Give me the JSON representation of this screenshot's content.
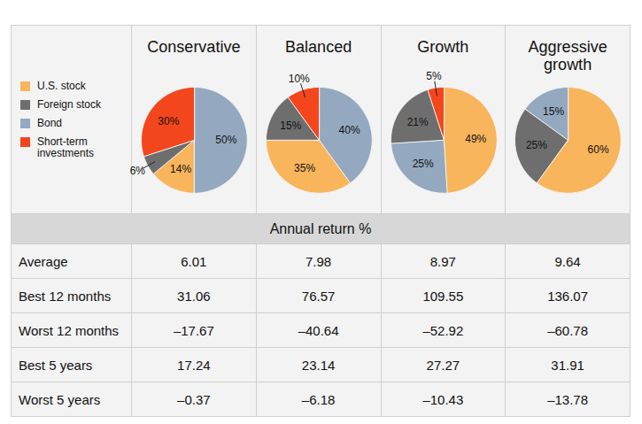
{
  "legend_entries": [
    {
      "name": "U.S. stock",
      "color": "#f8b55c"
    },
    {
      "name": "Foreign stock",
      "color": "#6e6e6e"
    },
    {
      "name": "Bond",
      "color": "#94a9bf"
    },
    {
      "name": "Short-term investments",
      "color": "#f4461c"
    }
  ],
  "chart_data": [
    {
      "type": "pie",
      "title": "Conservative",
      "categories": [
        "Bond",
        "U.S. stock",
        "Foreign stock",
        "Short-term investments"
      ],
      "values": [
        50,
        14,
        6,
        30
      ],
      "value_labels": [
        "50%",
        "14%",
        "6%",
        "30%"
      ],
      "colors": [
        "#94a9bf",
        "#f8b55c",
        "#6e6e6e",
        "#f4461c"
      ],
      "data_labels": true
    },
    {
      "type": "pie",
      "title": "Balanced",
      "categories": [
        "Bond",
        "U.S. stock",
        "Foreign stock",
        "Short-term investments"
      ],
      "values": [
        40,
        35,
        15,
        10
      ],
      "value_labels": [
        "40%",
        "35%",
        "15%",
        "10%"
      ],
      "colors": [
        "#94a9bf",
        "#f8b55c",
        "#6e6e6e",
        "#f4461c"
      ],
      "data_labels": true
    },
    {
      "type": "pie",
      "title": "Growth",
      "categories": [
        "U.S. stock",
        "Bond",
        "Foreign stock",
        "Short-term investments"
      ],
      "values": [
        49,
        25,
        21,
        5
      ],
      "value_labels": [
        "49%",
        "25%",
        "21%",
        "5%"
      ],
      "colors": [
        "#f8b55c",
        "#94a9bf",
        "#6e6e6e",
        "#f4461c"
      ],
      "data_labels": true
    },
    {
      "type": "pie",
      "title": "Aggressive growth",
      "categories": [
        "U.S. stock",
        "Foreign stock",
        "Bond"
      ],
      "values": [
        60,
        25,
        15
      ],
      "value_labels": [
        "60%",
        "25%",
        "15%"
      ],
      "colors": [
        "#f8b55c",
        "#6e6e6e",
        "#94a9bf"
      ],
      "data_labels": true
    }
  ],
  "table": {
    "header": "Annual return %",
    "rows": [
      {
        "label": "Average",
        "cells": [
          "6.01",
          "7.98",
          "8.97",
          "9.64"
        ]
      },
      {
        "label": "Best 12 months",
        "cells": [
          "31.06",
          "76.57",
          "109.55",
          "136.07"
        ]
      },
      {
        "label": "Worst 12 months",
        "cells": [
          "–17.67",
          "–40.64",
          "–52.92",
          "–60.78"
        ]
      },
      {
        "label": "Best 5 years",
        "cells": [
          "17.24",
          "23.14",
          "27.27",
          "31.91"
        ]
      },
      {
        "label": "Worst 5 years",
        "cells": [
          "–0.37",
          "–6.18",
          "–10.43",
          "–13.78"
        ]
      }
    ]
  }
}
